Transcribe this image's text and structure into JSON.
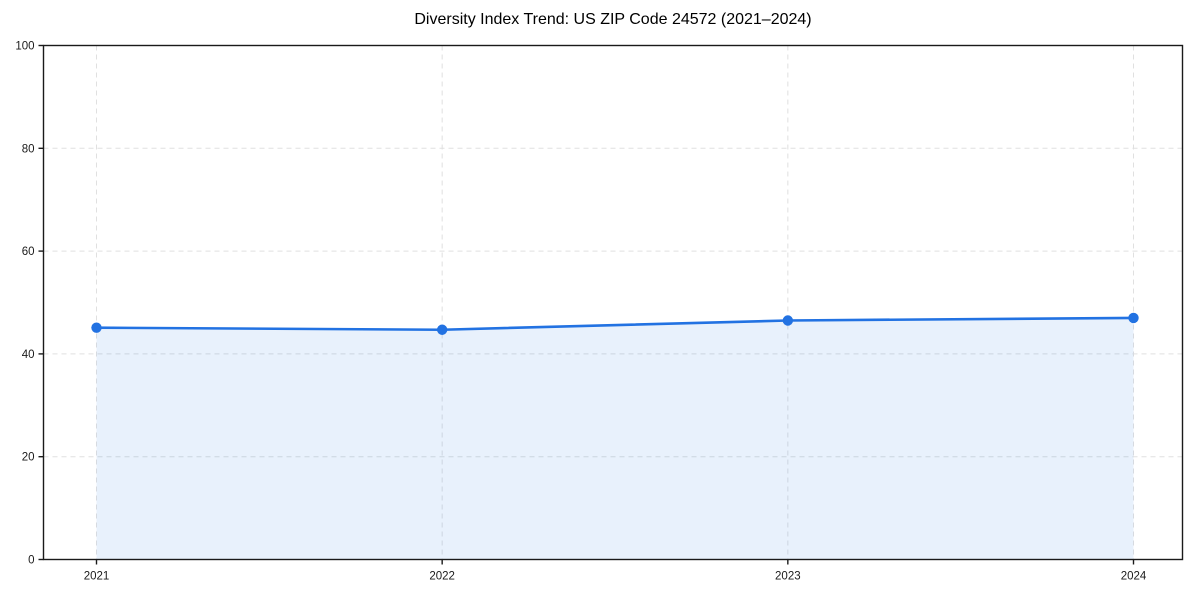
{
  "page": {
    "title": "Diversity Index Trend: US ZIP Code 24572 (2021–2024)"
  },
  "chart_data": {
    "type": "line",
    "title": "Diversity Index Trend: US ZIP Code 24572 (2021–2024)",
    "subtitle": "",
    "xlabel": "",
    "ylabel": "",
    "categories": [
      "2021",
      "2022",
      "2023",
      "2024"
    ],
    "series": [
      {
        "name": "Diversity Index",
        "values": [
          45.1,
          44.7,
          46.5,
          47.0
        ]
      }
    ],
    "ylim": [
      0,
      100
    ],
    "yticks": [
      0,
      20,
      40,
      60,
      80,
      100
    ],
    "grid": "dashed",
    "grid_on": true,
    "legend_position": "none",
    "area_fill": true,
    "marker": "circle",
    "colors": {
      "line": "#2272e2",
      "marker": "#2272e2",
      "area": "#2272e2",
      "area_opacity": "0.10",
      "grid": "#e0e0e0",
      "axis": "#1a1a1a",
      "text": "#1a1a1a"
    }
  }
}
